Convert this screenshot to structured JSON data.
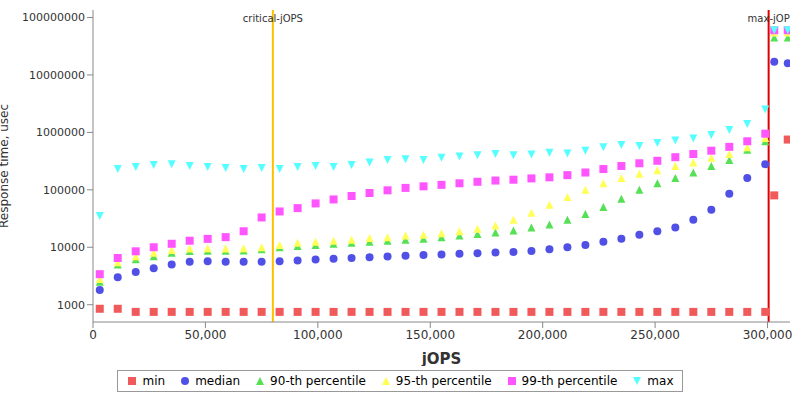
{
  "chart_data": {
    "type": "scatter",
    "x_label": "jOPS",
    "y_label": "Response time, usec",
    "log": "y",
    "grid": false,
    "legend": "bottom",
    "xlim": [
      0,
      310000
    ],
    "xticks": [
      0,
      {
        "value": 50000,
        "label": "50,000"
      },
      {
        "value": 100000,
        "label": "100,000"
      },
      {
        "value": 150000,
        "label": "150,000"
      },
      {
        "value": 200000,
        "label": "200,000"
      },
      {
        "value": 250000,
        "label": "250,000"
      },
      {
        "value": 300000,
        "label": "300,000"
      }
    ],
    "ylim": [
      500,
      135000000
    ],
    "yticks": [
      1000,
      10000,
      100000,
      1000000,
      10000000,
      100000000
    ],
    "x": [
      3000,
      11000,
      19000,
      27000,
      35000,
      43000,
      51000,
      59000,
      67000,
      75000,
      83000,
      91000,
      99000,
      107000,
      115000,
      123000,
      131000,
      139000,
      147000,
      155000,
      163000,
      171000,
      179000,
      187000,
      195000,
      203000,
      211000,
      219000,
      227000,
      235000,
      243000,
      251000,
      259000,
      267000,
      275000,
      283000,
      291000,
      299000,
      303000,
      309000
    ],
    "series": [
      {
        "name": "min",
        "color": "#f05a5a",
        "marker": "square",
        "values": [
          850,
          850,
          750,
          750,
          750,
          750,
          750,
          750,
          750,
          750,
          750,
          750,
          750,
          750,
          750,
          750,
          750,
          750,
          750,
          750,
          750,
          750,
          750,
          750,
          750,
          750,
          750,
          750,
          750,
          750,
          750,
          750,
          750,
          750,
          750,
          750,
          750,
          750,
          80000,
          750000
        ]
      },
      {
        "name": "median",
        "color": "#5050e6",
        "marker": "circle",
        "values": [
          1800,
          3000,
          3700,
          4300,
          5000,
          5600,
          5700,
          5600,
          5600,
          5600,
          5700,
          5900,
          6100,
          6300,
          6500,
          6700,
          6900,
          7100,
          7300,
          7500,
          7700,
          7900,
          8100,
          8300,
          8600,
          9200,
          10000,
          11000,
          12500,
          14000,
          16500,
          19000,
          22000,
          30000,
          45000,
          85000,
          160000,
          280000,
          17000000,
          16000000
        ]
      },
      {
        "name": "90-th percentile",
        "color": "#55e055",
        "marker": "triangle",
        "values": [
          2500,
          5000,
          6200,
          7000,
          8000,
          8600,
          8700,
          8700,
          8800,
          9200,
          10000,
          10500,
          11000,
          11500,
          12000,
          12500,
          13000,
          13500,
          14000,
          15000,
          16000,
          17000,
          18000,
          19500,
          22000,
          25000,
          30000,
          38000,
          50000,
          70000,
          100000,
          130000,
          160000,
          200000,
          260000,
          330000,
          500000,
          700000,
          45000000,
          45000000
        ]
      },
      {
        "name": "95-th percentile",
        "color": "#ffff55",
        "marker": "triangle",
        "values": [
          2800,
          5500,
          7000,
          8000,
          9000,
          9500,
          9600,
          9500,
          9600,
          10000,
          11000,
          12000,
          12500,
          13000,
          13500,
          14500,
          15000,
          16000,
          16500,
          17500,
          19000,
          21000,
          24000,
          30000,
          40000,
          55000,
          75000,
          100000,
          130000,
          160000,
          190000,
          220000,
          260000,
          300000,
          360000,
          420000,
          550000,
          800000,
          55000000,
          55000000
        ]
      },
      {
        "name": "99-th percentile",
        "color": "#ff55ff",
        "marker": "square",
        "values": [
          3400,
          6500,
          8500,
          10000,
          11500,
          13000,
          14000,
          15000,
          19000,
          33000,
          42000,
          48000,
          58000,
          68000,
          78000,
          88000,
          98000,
          108000,
          115000,
          122000,
          130000,
          138000,
          145000,
          150000,
          158000,
          165000,
          180000,
          200000,
          230000,
          260000,
          290000,
          320000,
          370000,
          420000,
          480000,
          560000,
          700000,
          950000,
          60000000,
          60000000
        ]
      },
      {
        "name": "max",
        "color": "#55ffff",
        "marker": "triangle-down",
        "values": [
          35000,
          230000,
          250000,
          270000,
          280000,
          260000,
          250000,
          240000,
          230000,
          240000,
          230000,
          250000,
          260000,
          250000,
          270000,
          300000,
          330000,
          340000,
          330000,
          360000,
          380000,
          400000,
          420000,
          400000,
          410000,
          440000,
          430000,
          480000,
          550000,
          600000,
          580000,
          650000,
          720000,
          780000,
          900000,
          1100000,
          1400000,
          2500000,
          60000000,
          60000000
        ]
      }
    ],
    "annotations": [
      {
        "x": 80000,
        "label": "critical-jOPS",
        "color": "#ffc000"
      },
      {
        "x": 300500,
        "label": "max-jOP",
        "color": "#e00000"
      }
    ]
  }
}
